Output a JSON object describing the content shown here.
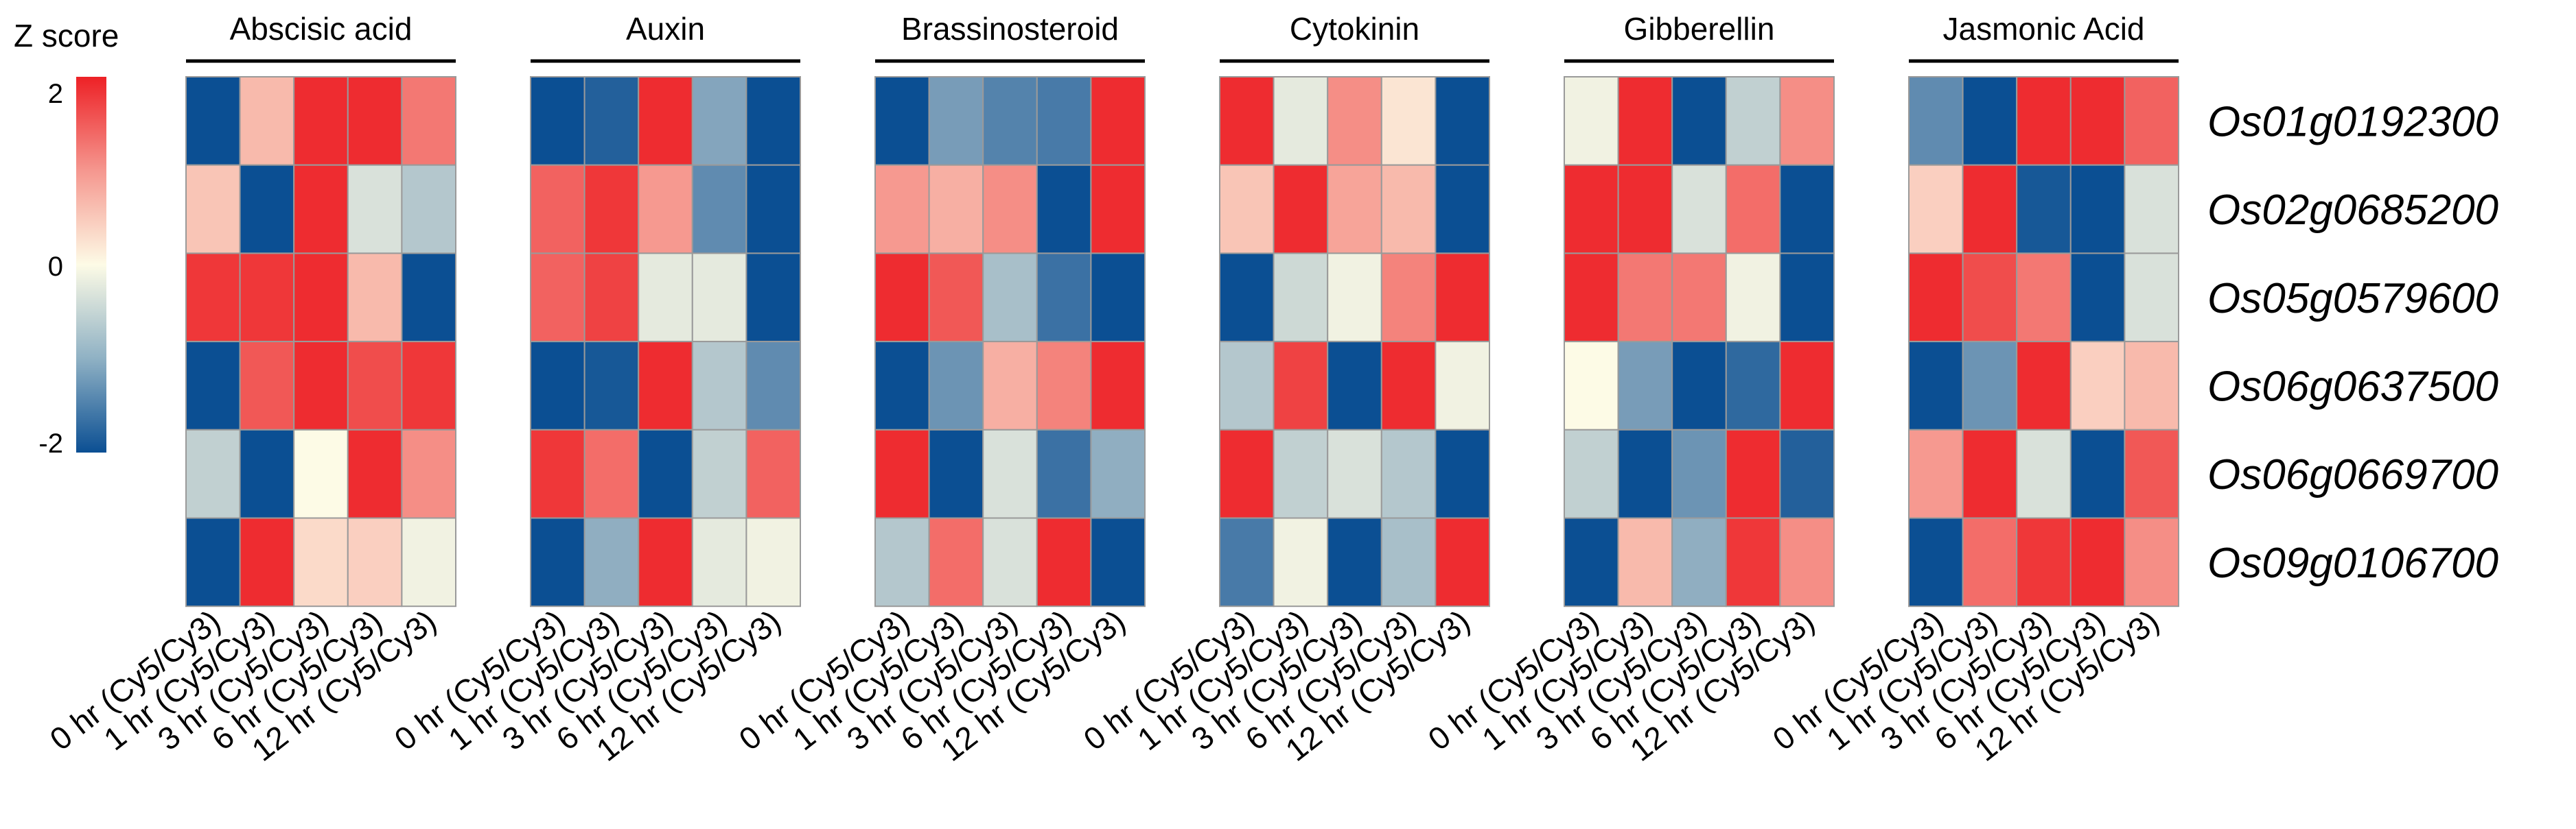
{
  "chart_data": {
    "type": "heatmap",
    "legend": {
      "title": "Z score",
      "ticks": [
        "2",
        "0",
        "-2"
      ],
      "range": [
        -2,
        2
      ],
      "colors": {
        "low": "#0b4f93",
        "mid": "#fdfbe6",
        "high": "#ed2126",
        "border": "#9a9a9a"
      }
    },
    "genes": [
      "Os01g0192300",
      "Os02g0685200",
      "Os05g0579600",
      "Os06g0637500",
      "Os06g0669700",
      "Os09g0106700"
    ],
    "columns": [
      "0 hr (Cy5/Cy3)",
      "1 hr (Cy5/Cy3)",
      "3 hr (Cy5/Cy3)",
      "6 hr (Cy5/Cy3)",
      "12 hr (Cy5/Cy3)"
    ],
    "panels": [
      {
        "name": "Abscisic acid",
        "values": [
          [
            -2.0,
            0.6,
            1.9,
            1.9,
            1.2
          ],
          [
            0.5,
            -2.0,
            1.9,
            -0.3,
            -0.6
          ],
          [
            1.8,
            1.8,
            1.9,
            0.6,
            -2.0
          ],
          [
            -2.0,
            1.5,
            1.9,
            1.6,
            1.8
          ],
          [
            -0.5,
            -2.0,
            0.0,
            1.9,
            1.0
          ],
          [
            -2.0,
            1.9,
            0.3,
            0.4,
            -0.1
          ]
        ]
      },
      {
        "name": "Auxin",
        "values": [
          [
            -2.0,
            -1.8,
            1.9,
            -1.0,
            -2.0
          ],
          [
            1.4,
            1.8,
            0.9,
            -1.3,
            -2.0
          ],
          [
            1.4,
            1.7,
            -0.2,
            -0.2,
            -2.0
          ],
          [
            -2.0,
            -1.9,
            1.9,
            -0.6,
            -1.3
          ],
          [
            1.8,
            1.3,
            -2.0,
            -0.5,
            1.4
          ],
          [
            -2.0,
            -0.9,
            1.9,
            -0.2,
            -0.1
          ]
        ]
      },
      {
        "name": "Brassinosteroid",
        "values": [
          [
            -2.0,
            -1.1,
            -1.4,
            -1.5,
            1.9
          ],
          [
            0.9,
            0.7,
            1.0,
            -2.0,
            1.9
          ],
          [
            1.9,
            1.5,
            -0.7,
            -1.6,
            -2.0
          ],
          [
            -2.0,
            -1.2,
            0.7,
            1.1,
            1.9
          ],
          [
            1.9,
            -2.0,
            -0.3,
            -1.6,
            -0.9
          ],
          [
            -0.6,
            1.3,
            -0.3,
            1.9,
            -2.0
          ]
        ]
      },
      {
        "name": "Cytokinin",
        "values": [
          [
            1.9,
            -0.2,
            1.0,
            0.2,
            -2.0
          ],
          [
            0.5,
            1.9,
            0.8,
            0.6,
            -2.0
          ],
          [
            -2.0,
            -0.4,
            -0.1,
            1.1,
            1.9
          ],
          [
            -0.6,
            1.7,
            -2.0,
            1.9,
            -0.1
          ],
          [
            1.9,
            -0.5,
            -0.3,
            -0.6,
            -2.0
          ],
          [
            -1.5,
            -0.1,
            -2.0,
            -0.7,
            1.9
          ]
        ]
      },
      {
        "name": "Gibberellin",
        "values": [
          [
            -0.1,
            1.9,
            -2.0,
            -0.5,
            1.0
          ],
          [
            1.9,
            1.9,
            -0.3,
            1.3,
            -2.0
          ],
          [
            1.9,
            1.2,
            1.2,
            -0.1,
            -2.0
          ],
          [
            0.0,
            -1.1,
            -2.0,
            -1.7,
            1.9
          ],
          [
            -0.5,
            -2.0,
            -1.2,
            1.9,
            -1.8
          ],
          [
            -2.0,
            0.6,
            -0.9,
            1.8,
            1.0
          ]
        ]
      },
      {
        "name": "Jasmonic Acid",
        "values": [
          [
            -1.3,
            -2.0,
            1.9,
            1.9,
            1.4
          ],
          [
            0.4,
            1.9,
            -1.9,
            -2.0,
            -0.3
          ],
          [
            1.9,
            1.6,
            1.2,
            -2.0,
            -0.3
          ],
          [
            -2.0,
            -1.2,
            1.9,
            0.4,
            0.6
          ],
          [
            0.9,
            1.9,
            -0.3,
            -2.0,
            1.5
          ],
          [
            -2.0,
            1.3,
            1.8,
            1.9,
            1.0
          ]
        ]
      }
    ]
  }
}
